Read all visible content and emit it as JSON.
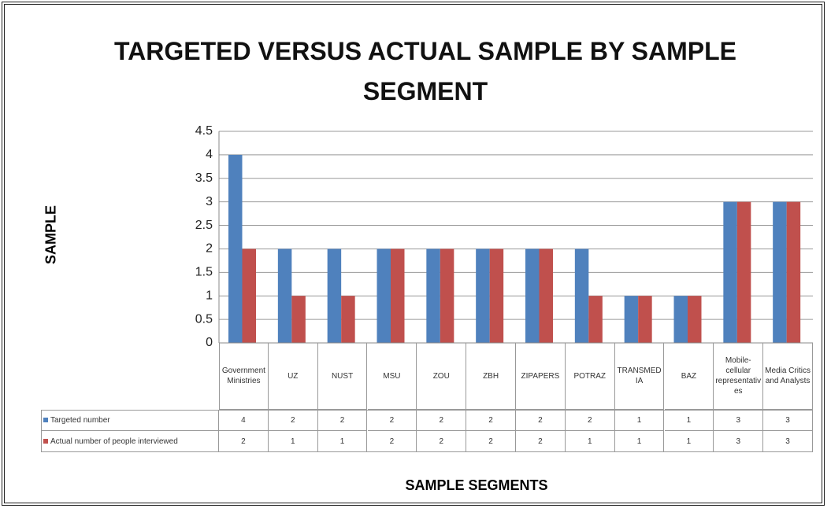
{
  "chart_data": {
    "type": "bar",
    "title": "TARGETED VERSUS ACTUAL SAMPLE BY SAMPLE SEGMENT",
    "x_label": "SAMPLE SEGMENTS",
    "y_label": "SAMPLE",
    "categories": [
      "Government Ministries",
      "UZ",
      "NUST",
      "MSU",
      "ZOU",
      "ZBH",
      "ZIPAPERS",
      "POTRAZ",
      "TRANSMEDIA",
      "BAZ",
      "Mobile-cellular representatives",
      "Media Critics and Analysts"
    ],
    "series": [
      {
        "name": "Targeted number",
        "color": "#4f81bd",
        "values": [
          4,
          2,
          2,
          2,
          2,
          2,
          2,
          2,
          1,
          1,
          3,
          3
        ]
      },
      {
        "name": "Actual number of people interviewed",
        "color": "#c0504d",
        "values": [
          2,
          1,
          1,
          2,
          2,
          2,
          2,
          1,
          1,
          1,
          3,
          3
        ]
      }
    ],
    "ylim": [
      0,
      4.5
    ],
    "yticks": [
      0,
      0.5,
      1,
      1.5,
      2,
      2.5,
      3,
      3.5,
      4,
      4.5
    ],
    "grid": true
  }
}
